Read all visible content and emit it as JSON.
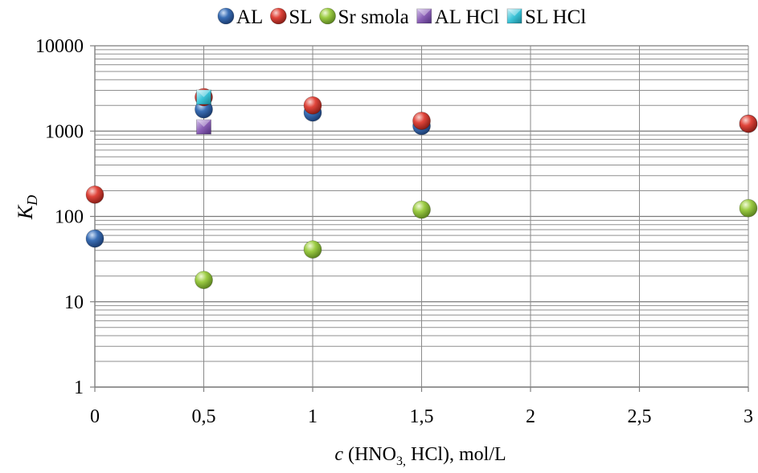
{
  "chart_data": {
    "type": "scatter",
    "title": "",
    "xlabel": {
      "italic": "c",
      "main": " (HNO",
      "sub": "3,",
      "tail": " HCl), mol/L"
    },
    "ylabel": {
      "main": "K",
      "sub": "D"
    },
    "xlim": [
      0,
      3
    ],
    "ylim": [
      1,
      10000
    ],
    "yscale": "log",
    "grid": true,
    "legend_position": "top",
    "x_ticks": [
      {
        "value": 0,
        "label": "0"
      },
      {
        "value": 0.5,
        "label": "0,5"
      },
      {
        "value": 1,
        "label": "1"
      },
      {
        "value": 1.5,
        "label": "1,5"
      },
      {
        "value": 2,
        "label": "2"
      },
      {
        "value": 2.5,
        "label": "2,5"
      },
      {
        "value": 3,
        "label": "3"
      }
    ],
    "y_ticks": [
      {
        "value": 1,
        "label": "1"
      },
      {
        "value": 10,
        "label": "10"
      },
      {
        "value": 100,
        "label": "100"
      },
      {
        "value": 1000,
        "label": "1000"
      },
      {
        "value": 10000,
        "label": "10000"
      }
    ],
    "series": [
      {
        "name": "AL",
        "marker": "circle",
        "color": "#3b6fb6",
        "x": [
          0,
          0.5,
          1,
          1.5,
          3
        ],
        "y": [
          55,
          1800,
          1650,
          1150,
          1220
        ]
      },
      {
        "name": "SL",
        "marker": "circle",
        "color": "#e0453b",
        "x": [
          0,
          0.5,
          1,
          1.5,
          3
        ],
        "y": [
          180,
          2500,
          2000,
          1320,
          1220
        ]
      },
      {
        "name": "Sr smola",
        "marker": "circle",
        "color": "#9ccc44",
        "x": [
          0.5,
          1,
          1.5,
          3
        ],
        "y": [
          18,
          41,
          120,
          125
        ]
      },
      {
        "name": "AL HCl",
        "marker": "square",
        "color": "#8a5fb5",
        "x": [
          0.5
        ],
        "y": [
          1120
        ]
      },
      {
        "name": "SL HCl",
        "marker": "square",
        "color": "#3cc4d8",
        "x": [
          0.5
        ],
        "y": [
          2500
        ]
      }
    ]
  }
}
